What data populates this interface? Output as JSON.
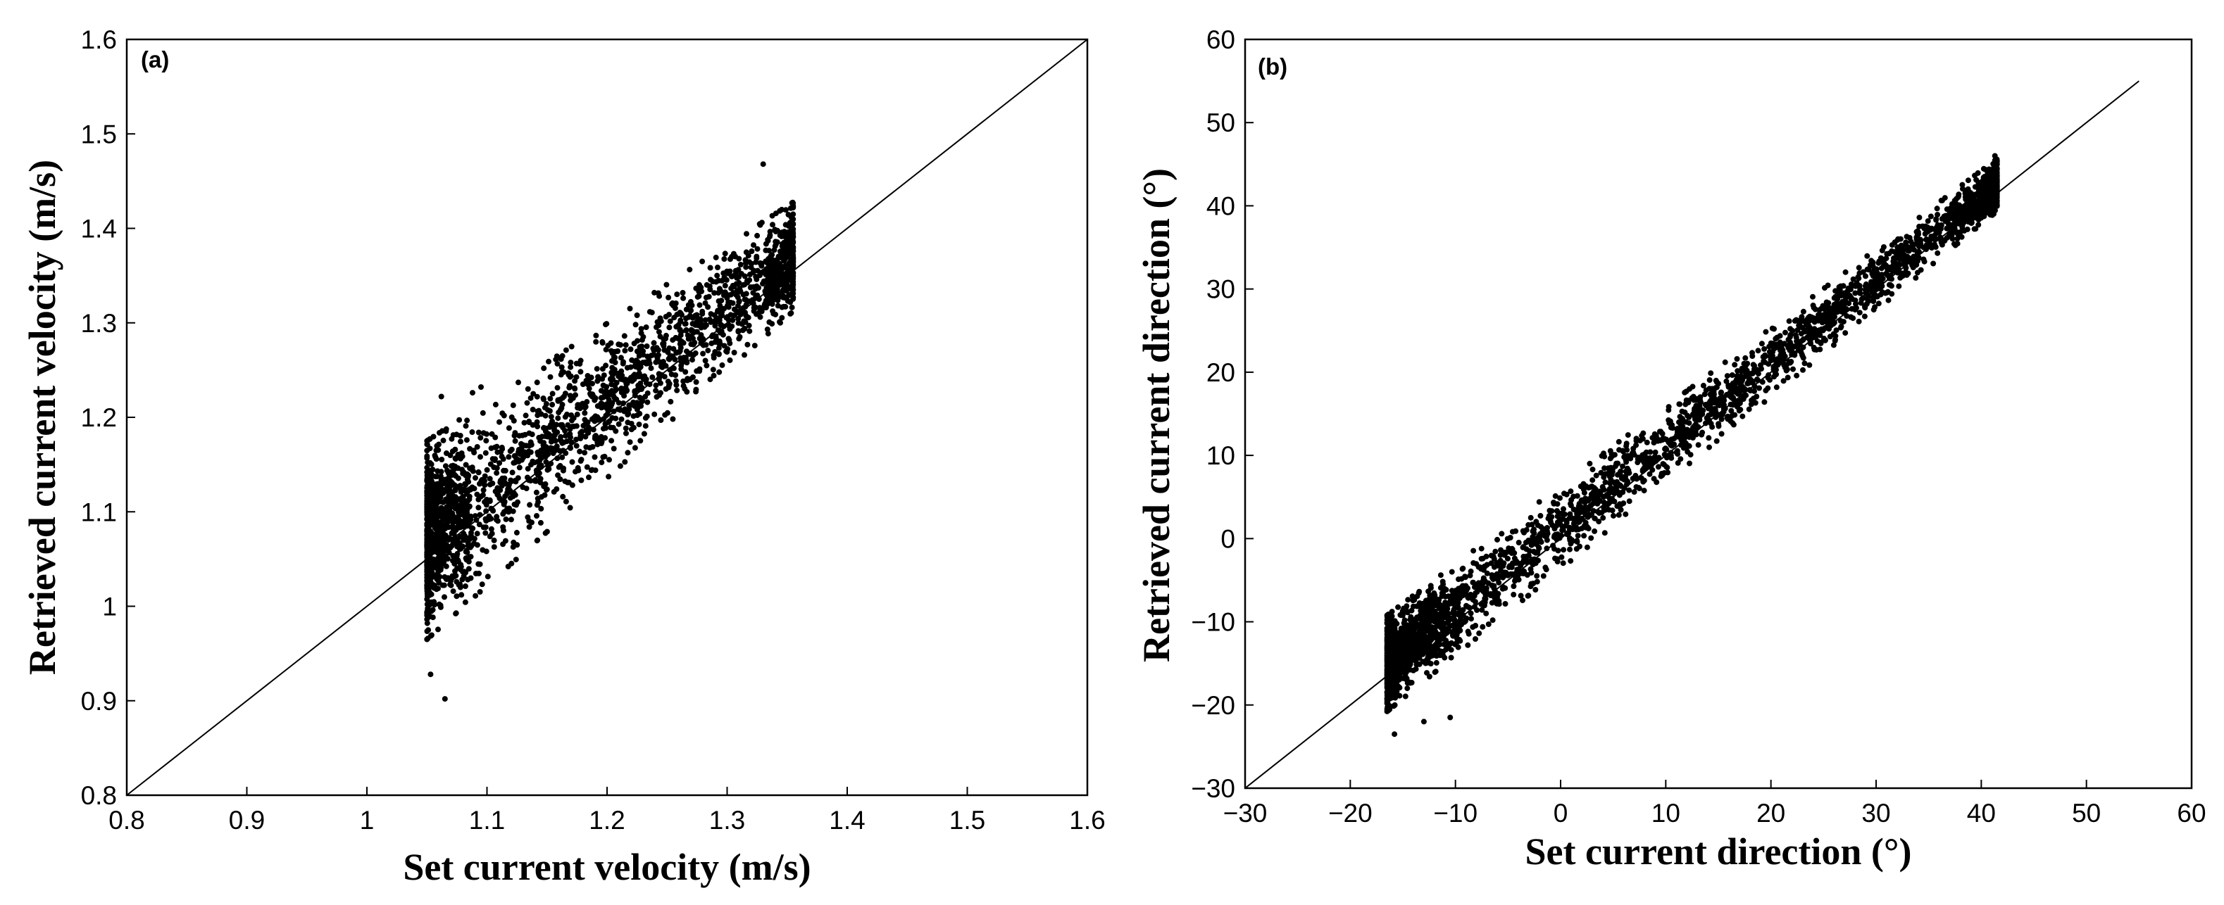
{
  "chart_data": [
    {
      "type": "scatter",
      "panel_label": "(a)",
      "title": "",
      "xlabel": "Set current velocity (m/s)",
      "ylabel": "Retrieved current velocity (m/s)",
      "xlim": [
        0.8,
        1.6
      ],
      "ylim": [
        0.8,
        1.6
      ],
      "xticks": [
        "0.8",
        "0.9",
        "1",
        "1.1",
        "1.2",
        "1.3",
        "1.4",
        "1.5",
        "1.6"
      ],
      "yticks": [
        "0.8",
        "0.9",
        "1",
        "1.1",
        "1.2",
        "1.3",
        "1.4",
        "1.5",
        "1.6"
      ],
      "reference_line": {
        "label": "1:1 line",
        "from": [
          0.8,
          0.8
        ],
        "to": [
          1.6,
          1.6
        ]
      },
      "point_color": "#000000",
      "series": [
        {
          "name": "retrieved vs set",
          "x_range": [
            1.05,
            1.355
          ],
          "band_center_start": [
            1.05,
            1.07
          ],
          "band_center_end": [
            1.355,
            1.37
          ],
          "band_halfwidth_start": 0.1,
          "band_halfwidth_end": 0.055,
          "n_points": 14000,
          "outliers": [
            [
              1.065,
              0.902
            ],
            [
              1.088,
              1.226
            ],
            [
              1.095,
              1.232
            ],
            [
              1.33,
              1.468
            ],
            [
              1.053,
              0.928
            ],
            [
              1.062,
              1.222
            ]
          ]
        }
      ],
      "grid": false
    },
    {
      "type": "scatter",
      "panel_label": "(b)",
      "title": "",
      "xlabel": "Set current direction (°)",
      "ylabel": "Retrieved current direction (°)",
      "xlim": [
        -30,
        60
      ],
      "ylim": [
        -30,
        60
      ],
      "xticks": [
        "−30",
        "−20",
        "−10",
        "0",
        "10",
        "20",
        "30",
        "40",
        "50",
        "60"
      ],
      "yticks": [
        "−30",
        "−20",
        "−10",
        "0",
        "10",
        "20",
        "30",
        "40",
        "50",
        "60"
      ],
      "reference_line": {
        "label": "1:1 line",
        "from": [
          -30,
          -30
        ],
        "to": [
          55,
          55
        ]
      },
      "point_color": "#000000",
      "series": [
        {
          "name": "retrieved vs set",
          "x_range": [
            -16.5,
            41.5
          ],
          "band_center_start": [
            -16.5,
            -15
          ],
          "band_center_end": [
            41.5,
            42.5
          ],
          "band_halfwidth_start": 5.5,
          "band_halfwidth_end": 3,
          "n_points": 14000,
          "outliers": [
            [
              -15.8,
              -23.5
            ],
            [
              -13,
              -22
            ],
            [
              -10.5,
              -21.5
            ],
            [
              41.3,
              46
            ]
          ]
        }
      ],
      "grid": false
    }
  ]
}
